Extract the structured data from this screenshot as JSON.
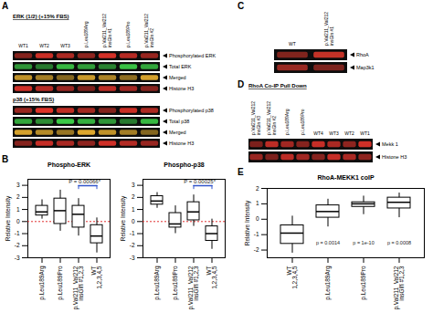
{
  "blots": [
    {
      "panel": "A",
      "lanes": [
        "WT1",
        "WT2",
        "WT3",
        "p.Leu189Arg",
        "p.Val211_Val212 insGln #1",
        "p.Leu189Pro",
        "p.Val211_Val212 insGln #2"
      ],
      "groups": [
        {
          "title": "ERK (1/2) (+15% FBS)",
          "rows": [
            "Phosphorylated ERK",
            "Total ERK",
            "Merged",
            "Histone H3"
          ]
        },
        {
          "title": "p38 (+15% FBS)",
          "rows": [
            "Phosphorylated p38",
            "Total p38",
            "Merged",
            "Histone H3"
          ]
        }
      ]
    },
    {
      "panel": "C",
      "lanes": [
        "WT",
        "p.Val211_Val212 insGln #1"
      ],
      "groups": [
        {
          "rows": [
            "RhoA",
            "Map3k1"
          ]
        }
      ]
    },
    {
      "panel": "D",
      "lanes": [
        "p.Val211_Val212 insGln #3",
        "p.Val211_Val212 insGln #2",
        "p.Leu189Arg",
        "p.Leu189Pro",
        "WT4",
        "WT3",
        "WT2",
        "WT1"
      ],
      "groups": [
        {
          "title": "RhoA Co-IP Pull Down",
          "rows": [
            "Mekk 1",
            "Histone H3"
          ]
        }
      ]
    }
  ],
  "chart_data": [
    {
      "panel": "B",
      "type": "box",
      "title": "Phospho-ERK",
      "y_label": "Relative Intensity",
      "categories": [
        "p.Leu189Arg",
        "p.Leu189Pro",
        "p.Val211_Val212 insGln #1,2,3",
        "WT 1,2,3,4,5"
      ],
      "values": [
        {
          "min": 0.2,
          "q1": 0.5,
          "median": 0.8,
          "q3": 1.3,
          "max": 1.8
        },
        {
          "min": -0.8,
          "q1": -0.2,
          "median": 0.9,
          "q3": 1.9,
          "max": 2.6
        },
        {
          "min": -1.2,
          "q1": -0.5,
          "median": 0.6,
          "q3": 1.3,
          "max": 1.9
        },
        {
          "min": -2.6,
          "q1": -1.8,
          "median": -1.2,
          "q3": -0.3,
          "max": 0.3
        }
      ],
      "ylim": [
        -3,
        3.5
      ],
      "yticks": [
        -3,
        -2,
        -1,
        0,
        1,
        2,
        3
      ],
      "reference_line": 0,
      "annotations": [
        {
          "from": "p.Val211_Val212 insGln #1,2,3",
          "to": "WT 1,2,3,4,5",
          "label": "P = 0.00066*"
        }
      ]
    },
    {
      "panel": "B",
      "type": "box",
      "title": "Phospho-p38",
      "y_label": "Relative Intensity",
      "categories": [
        "p.Leu189Arg",
        "p.Leu189Pro",
        "p.Val211_Val212 insGln #1,2,3",
        "WT 1,2,3,4,5"
      ],
      "values": [
        {
          "min": 1.1,
          "q1": 1.4,
          "median": 1.7,
          "q3": 2.1,
          "max": 2.4
        },
        {
          "min": -1.0,
          "q1": -0.5,
          "median": -0.2,
          "q3": 0.7,
          "max": 1.3
        },
        {
          "min": -0.4,
          "q1": 0.1,
          "median": 0.8,
          "q3": 1.6,
          "max": 2.2
        },
        {
          "min": -2.3,
          "q1": -1.6,
          "median": -1.0,
          "q3": -0.4,
          "max": 0.2
        }
      ],
      "ylim": [
        -3,
        3.5
      ],
      "yticks": [
        -3,
        -2,
        -1,
        0,
        1,
        2,
        3
      ],
      "reference_line": 0,
      "annotations": [
        {
          "from": "p.Val211_Val212 insGln #1,2,3",
          "to": "WT 1,2,3,4,5",
          "label": "P = 0.00025*"
        }
      ]
    },
    {
      "panel": "E",
      "type": "box",
      "title": "RhoA-MEKK1 coIP",
      "y_label": "Relative Intensity",
      "categories": [
        "WT 1,2,3,4,5",
        "p.Leu189Arg",
        "p.Leu189Pro",
        "p.Val211_Val212 insGln #1,2,3"
      ],
      "values": [
        {
          "min": -2.2,
          "q1": -1.6,
          "median": -0.9,
          "q3": -0.4,
          "max": 0.2
        },
        {
          "min": -0.5,
          "q1": 0.1,
          "median": 0.5,
          "q3": 0.9,
          "max": 1.3
        },
        {
          "min": 0.3,
          "q1": 0.8,
          "median": 1.0,
          "q3": 1.1,
          "max": 1.5
        },
        {
          "min": 0.1,
          "q1": 0.7,
          "median": 1.1,
          "q3": 1.4,
          "max": 1.7
        }
      ],
      "ylim": [
        -2.5,
        2
      ],
      "yticks": [
        -2,
        -1,
        0,
        1,
        2
      ],
      "annotations": [
        {
          "category": "p.Leu189Arg",
          "label": "p = 0.0014"
        },
        {
          "category": "p.Leu189Pro",
          "label": "p = 1e-10"
        },
        {
          "category": "p.Val211_Val212 insGln #1,2,3",
          "label": "p = 0.0008"
        }
      ]
    }
  ]
}
